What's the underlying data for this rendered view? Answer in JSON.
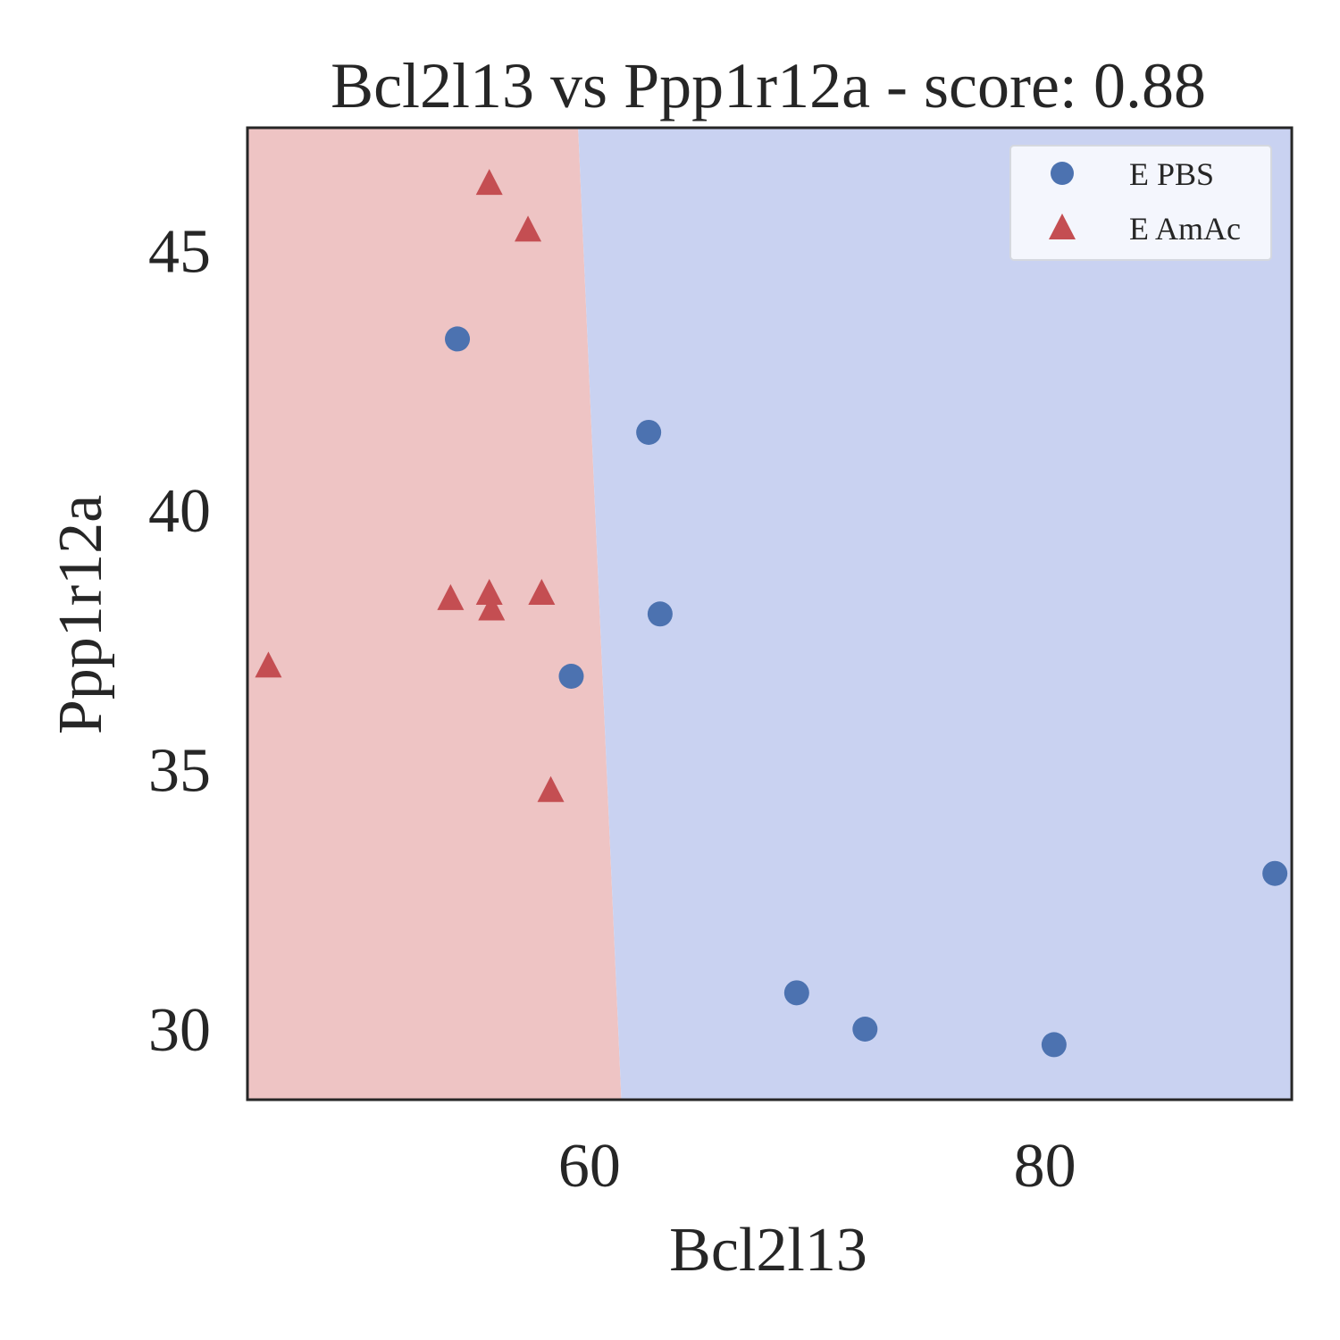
{
  "chart_data": {
    "type": "scatter",
    "title": "Bcl2l13 vs Ppp1r12a - score: 0.88",
    "xlabel": "Bcl2l13",
    "ylabel": "Ppp1r12a",
    "xlim": [
      44.98,
      90.84
    ],
    "ylim": [
      28.64,
      47.37
    ],
    "xticks": [
      60,
      80
    ],
    "yticks": [
      30,
      35,
      40,
      45
    ],
    "grid": false,
    "legend": "top-right",
    "series": [
      {
        "name": "E PBS",
        "marker": "circle",
        "color": "#4c72b0",
        "x": [
          54.2,
          62.6,
          63.1,
          59.2,
          69.1,
          72.1,
          80.4,
          90.1
        ],
        "y": [
          43.3,
          41.5,
          38.0,
          36.8,
          30.7,
          30.0,
          29.7,
          33.0
        ]
      },
      {
        "name": "E AmAc",
        "marker": "triangle",
        "color": "#c44e52",
        "x": [
          55.6,
          57.3,
          53.9,
          55.6,
          55.7,
          57.9,
          45.9,
          58.3
        ],
        "y": [
          46.3,
          45.4,
          38.3,
          38.4,
          38.1,
          38.4,
          37.0,
          34.6
        ]
      }
    ],
    "decision_regions": {
      "left_class": "E AmAc",
      "right_class": "E PBS",
      "left_color": "#eec4c4",
      "right_color": "#c9d2f1",
      "boundary": {
        "x_at_ymax": 59.5,
        "x_at_ymin": 61.4
      }
    }
  }
}
